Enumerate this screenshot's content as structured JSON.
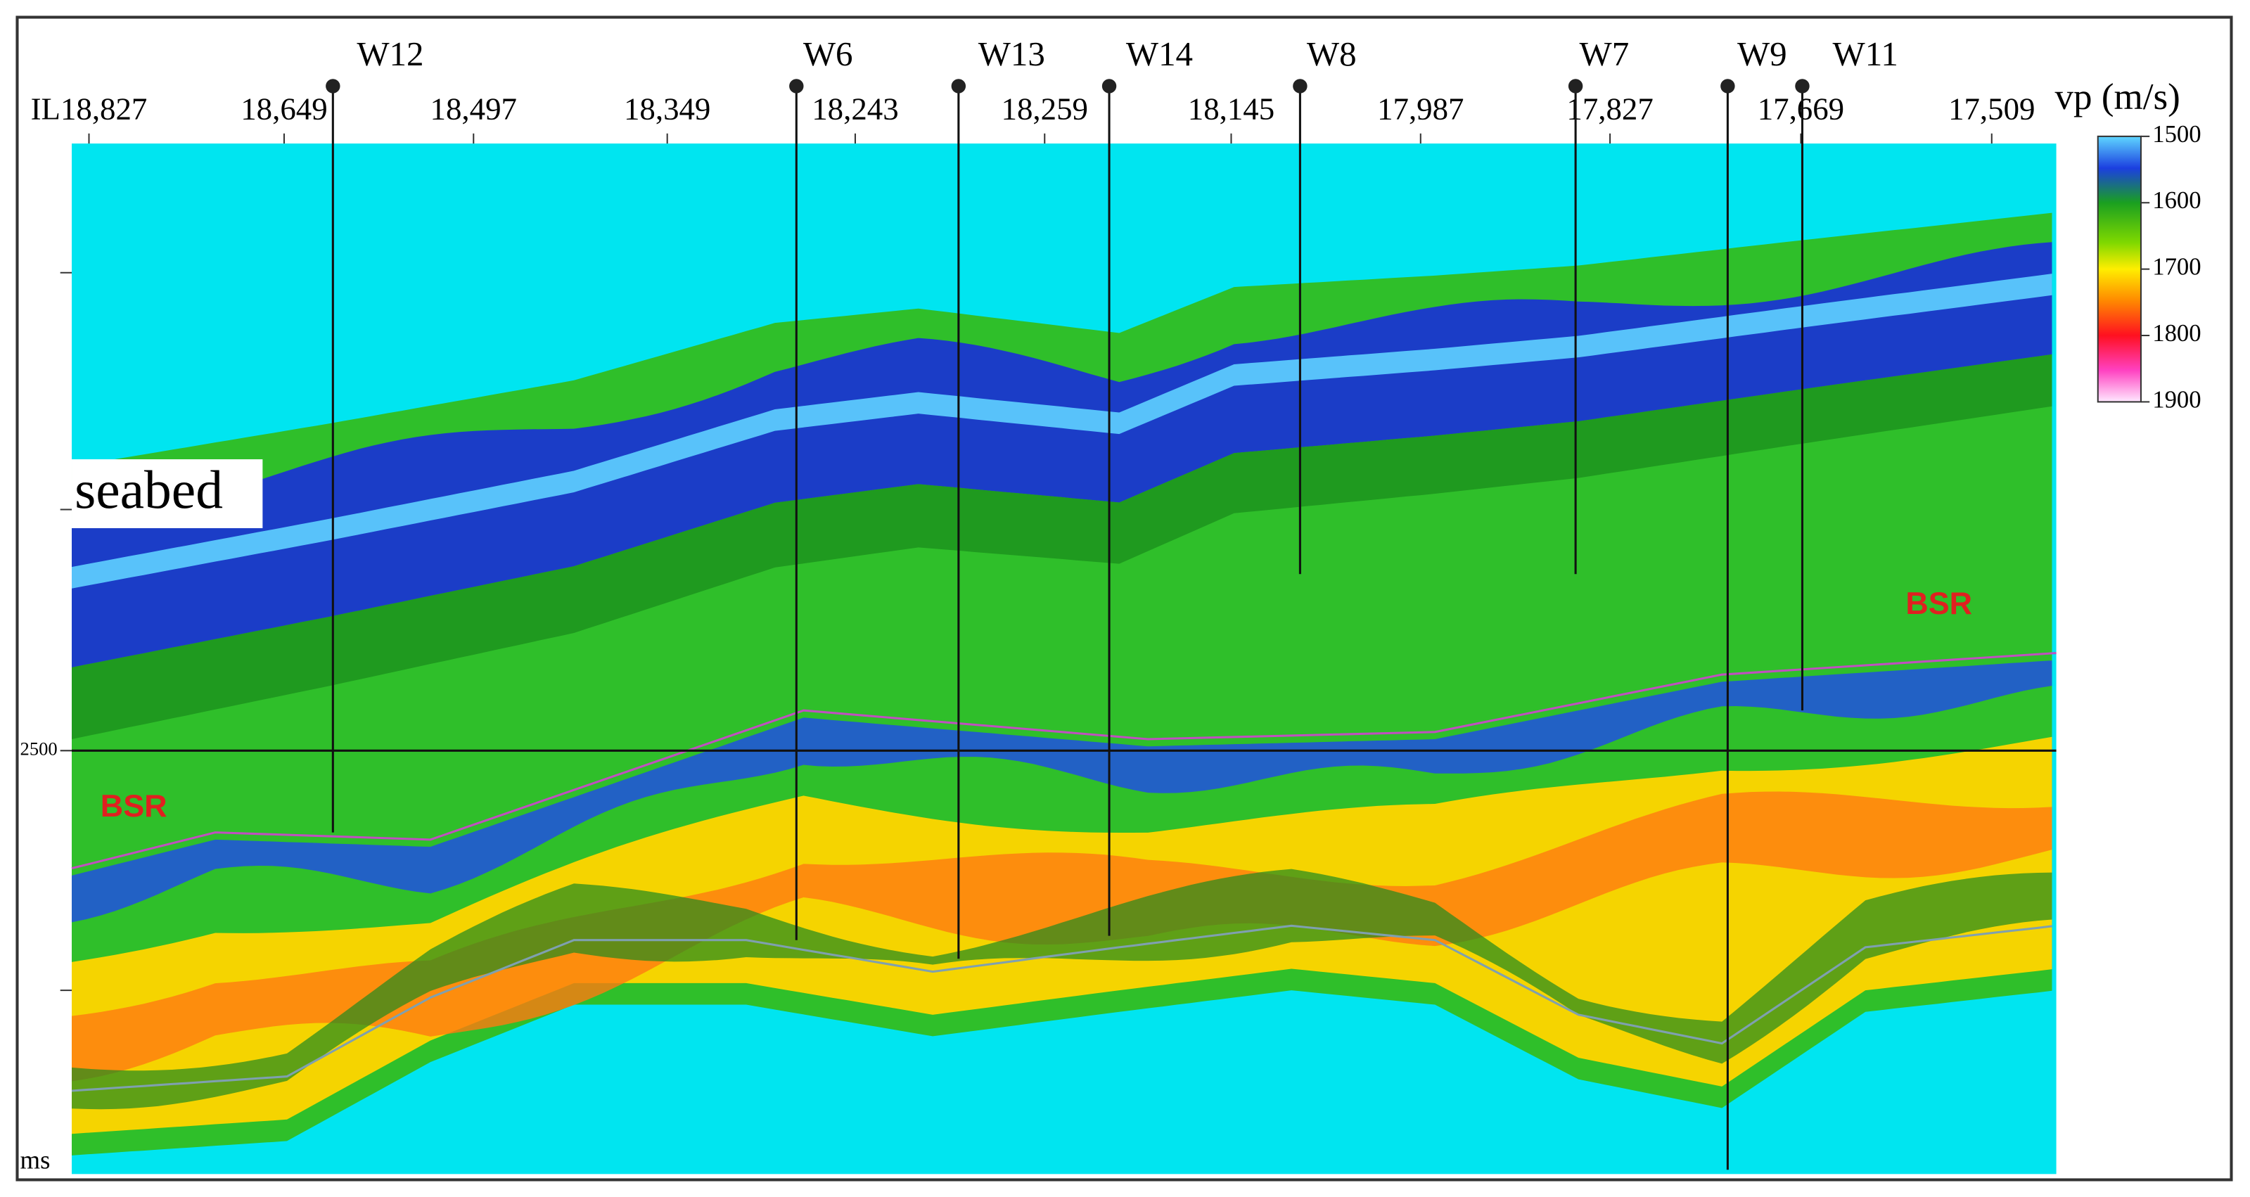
{
  "figure": {
    "inline_labels": [
      "IL18,827",
      "18,649",
      "18,497",
      "18,349",
      "18,243",
      "18,259",
      "18,145",
      "17,987",
      "17,827",
      "17,669",
      "17,509"
    ],
    "wells": [
      "W12",
      "W6",
      "W13",
      "W14",
      "W8",
      "W7",
      "W9",
      "W11"
    ],
    "colorbar": {
      "title": "vp (m/s)",
      "ticks": [
        1500,
        1600,
        1700,
        1800,
        1900
      ],
      "range": [
        1500,
        1900
      ]
    },
    "time_axis": {
      "tick_label": "2500",
      "unit": "ms"
    },
    "annotations": {
      "seabed": "seabed",
      "bsr_left": "BSR",
      "bsr_right": "BSR"
    }
  }
}
